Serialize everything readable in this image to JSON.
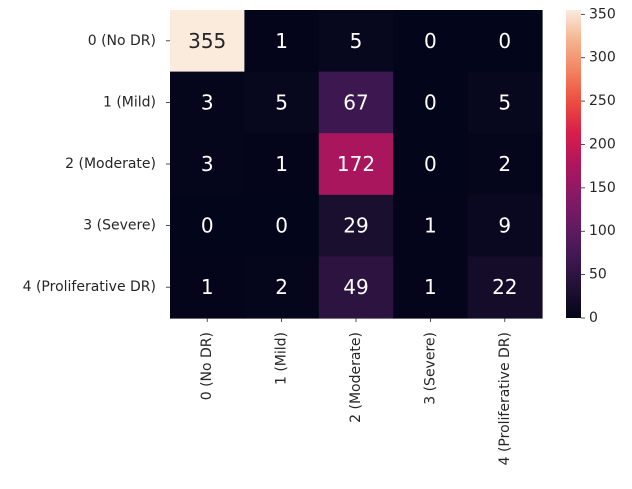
{
  "chart_data": {
    "type": "heatmap",
    "title": "",
    "xlabel": "",
    "ylabel": "",
    "rows": [
      "0 (No DR)",
      "1 (Mild)",
      "2 (Moderate)",
      "3 (Severe)",
      "4 (Proliferative DR)"
    ],
    "columns": [
      "0 (No DR)",
      "1 (Mild)",
      "2 (Moderate)",
      "3 (Severe)",
      "4 (Proliferative DR)"
    ],
    "values": [
      [
        355,
        1,
        5,
        0,
        0
      ],
      [
        3,
        5,
        67,
        0,
        5
      ],
      [
        3,
        1,
        172,
        0,
        2
      ],
      [
        0,
        0,
        29,
        1,
        9
      ],
      [
        1,
        2,
        49,
        1,
        22
      ]
    ],
    "colorbar": {
      "range": [
        0,
        355
      ],
      "ticks": [
        0,
        50,
        100,
        150,
        200,
        250,
        300,
        350
      ],
      "colormap": "rocket"
    },
    "grid": false
  }
}
